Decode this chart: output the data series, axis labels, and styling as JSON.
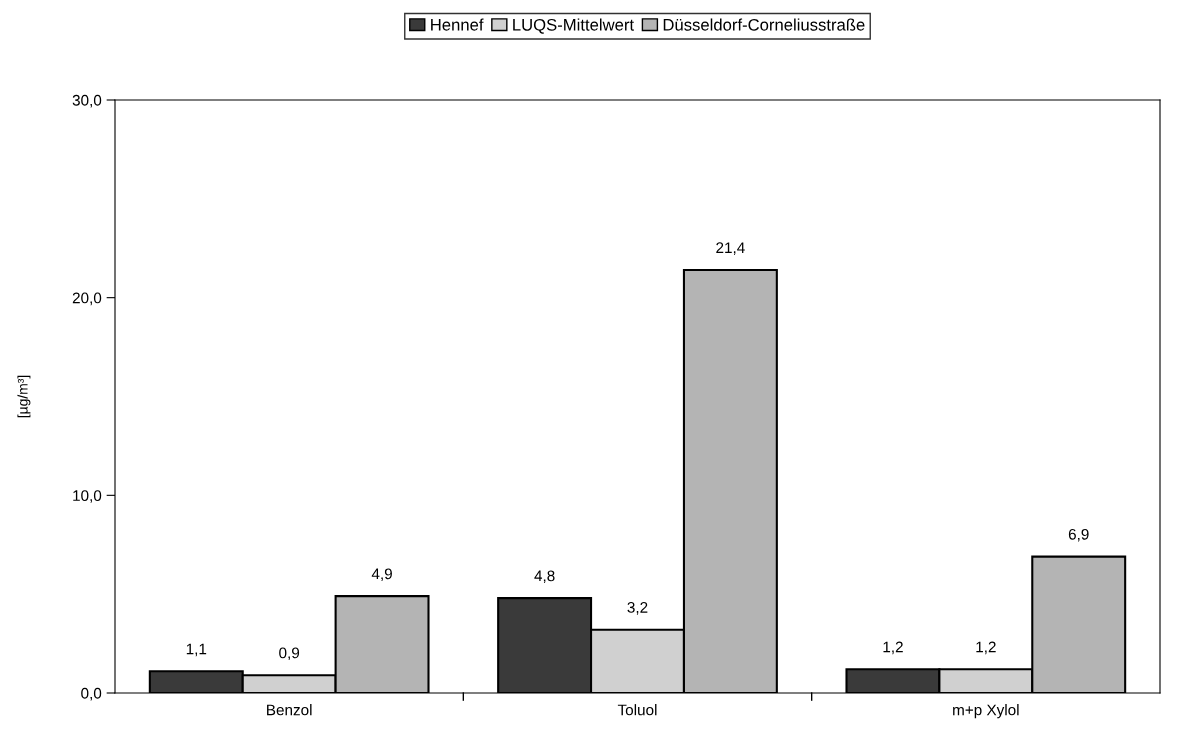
{
  "chart_data": {
    "type": "bar",
    "ylabel": "[µg/m³]",
    "categories": [
      "Benzol",
      "Toluol",
      "m+p Xylol"
    ],
    "series": [
      {
        "name": "Hennef",
        "color": "#3a3a3a",
        "values": [
          1.1,
          4.8,
          1.2
        ],
        "value_labels": [
          "1,1",
          "4,8",
          "1,2"
        ]
      },
      {
        "name": "LUQS-Mittelwert",
        "color": "#d0d0d0",
        "values": [
          0.9,
          3.2,
          1.2
        ],
        "value_labels": [
          "0,9",
          "3,2",
          "1,2"
        ]
      },
      {
        "name": "Düsseldorf-Corneliusstraße",
        "color": "#b4b4b4",
        "values": [
          4.9,
          21.4,
          6.9
        ],
        "value_labels": [
          "4,9",
          "21,4",
          "6,9"
        ]
      }
    ],
    "ylim": [
      0,
      30
    ],
    "yticks": [
      {
        "value": 0,
        "label": "0,0"
      },
      {
        "value": 10,
        "label": "10,0"
      },
      {
        "value": 20,
        "label": "20,0"
      },
      {
        "value": 30,
        "label": "30,0"
      }
    ],
    "grid": false,
    "legend": "top"
  }
}
